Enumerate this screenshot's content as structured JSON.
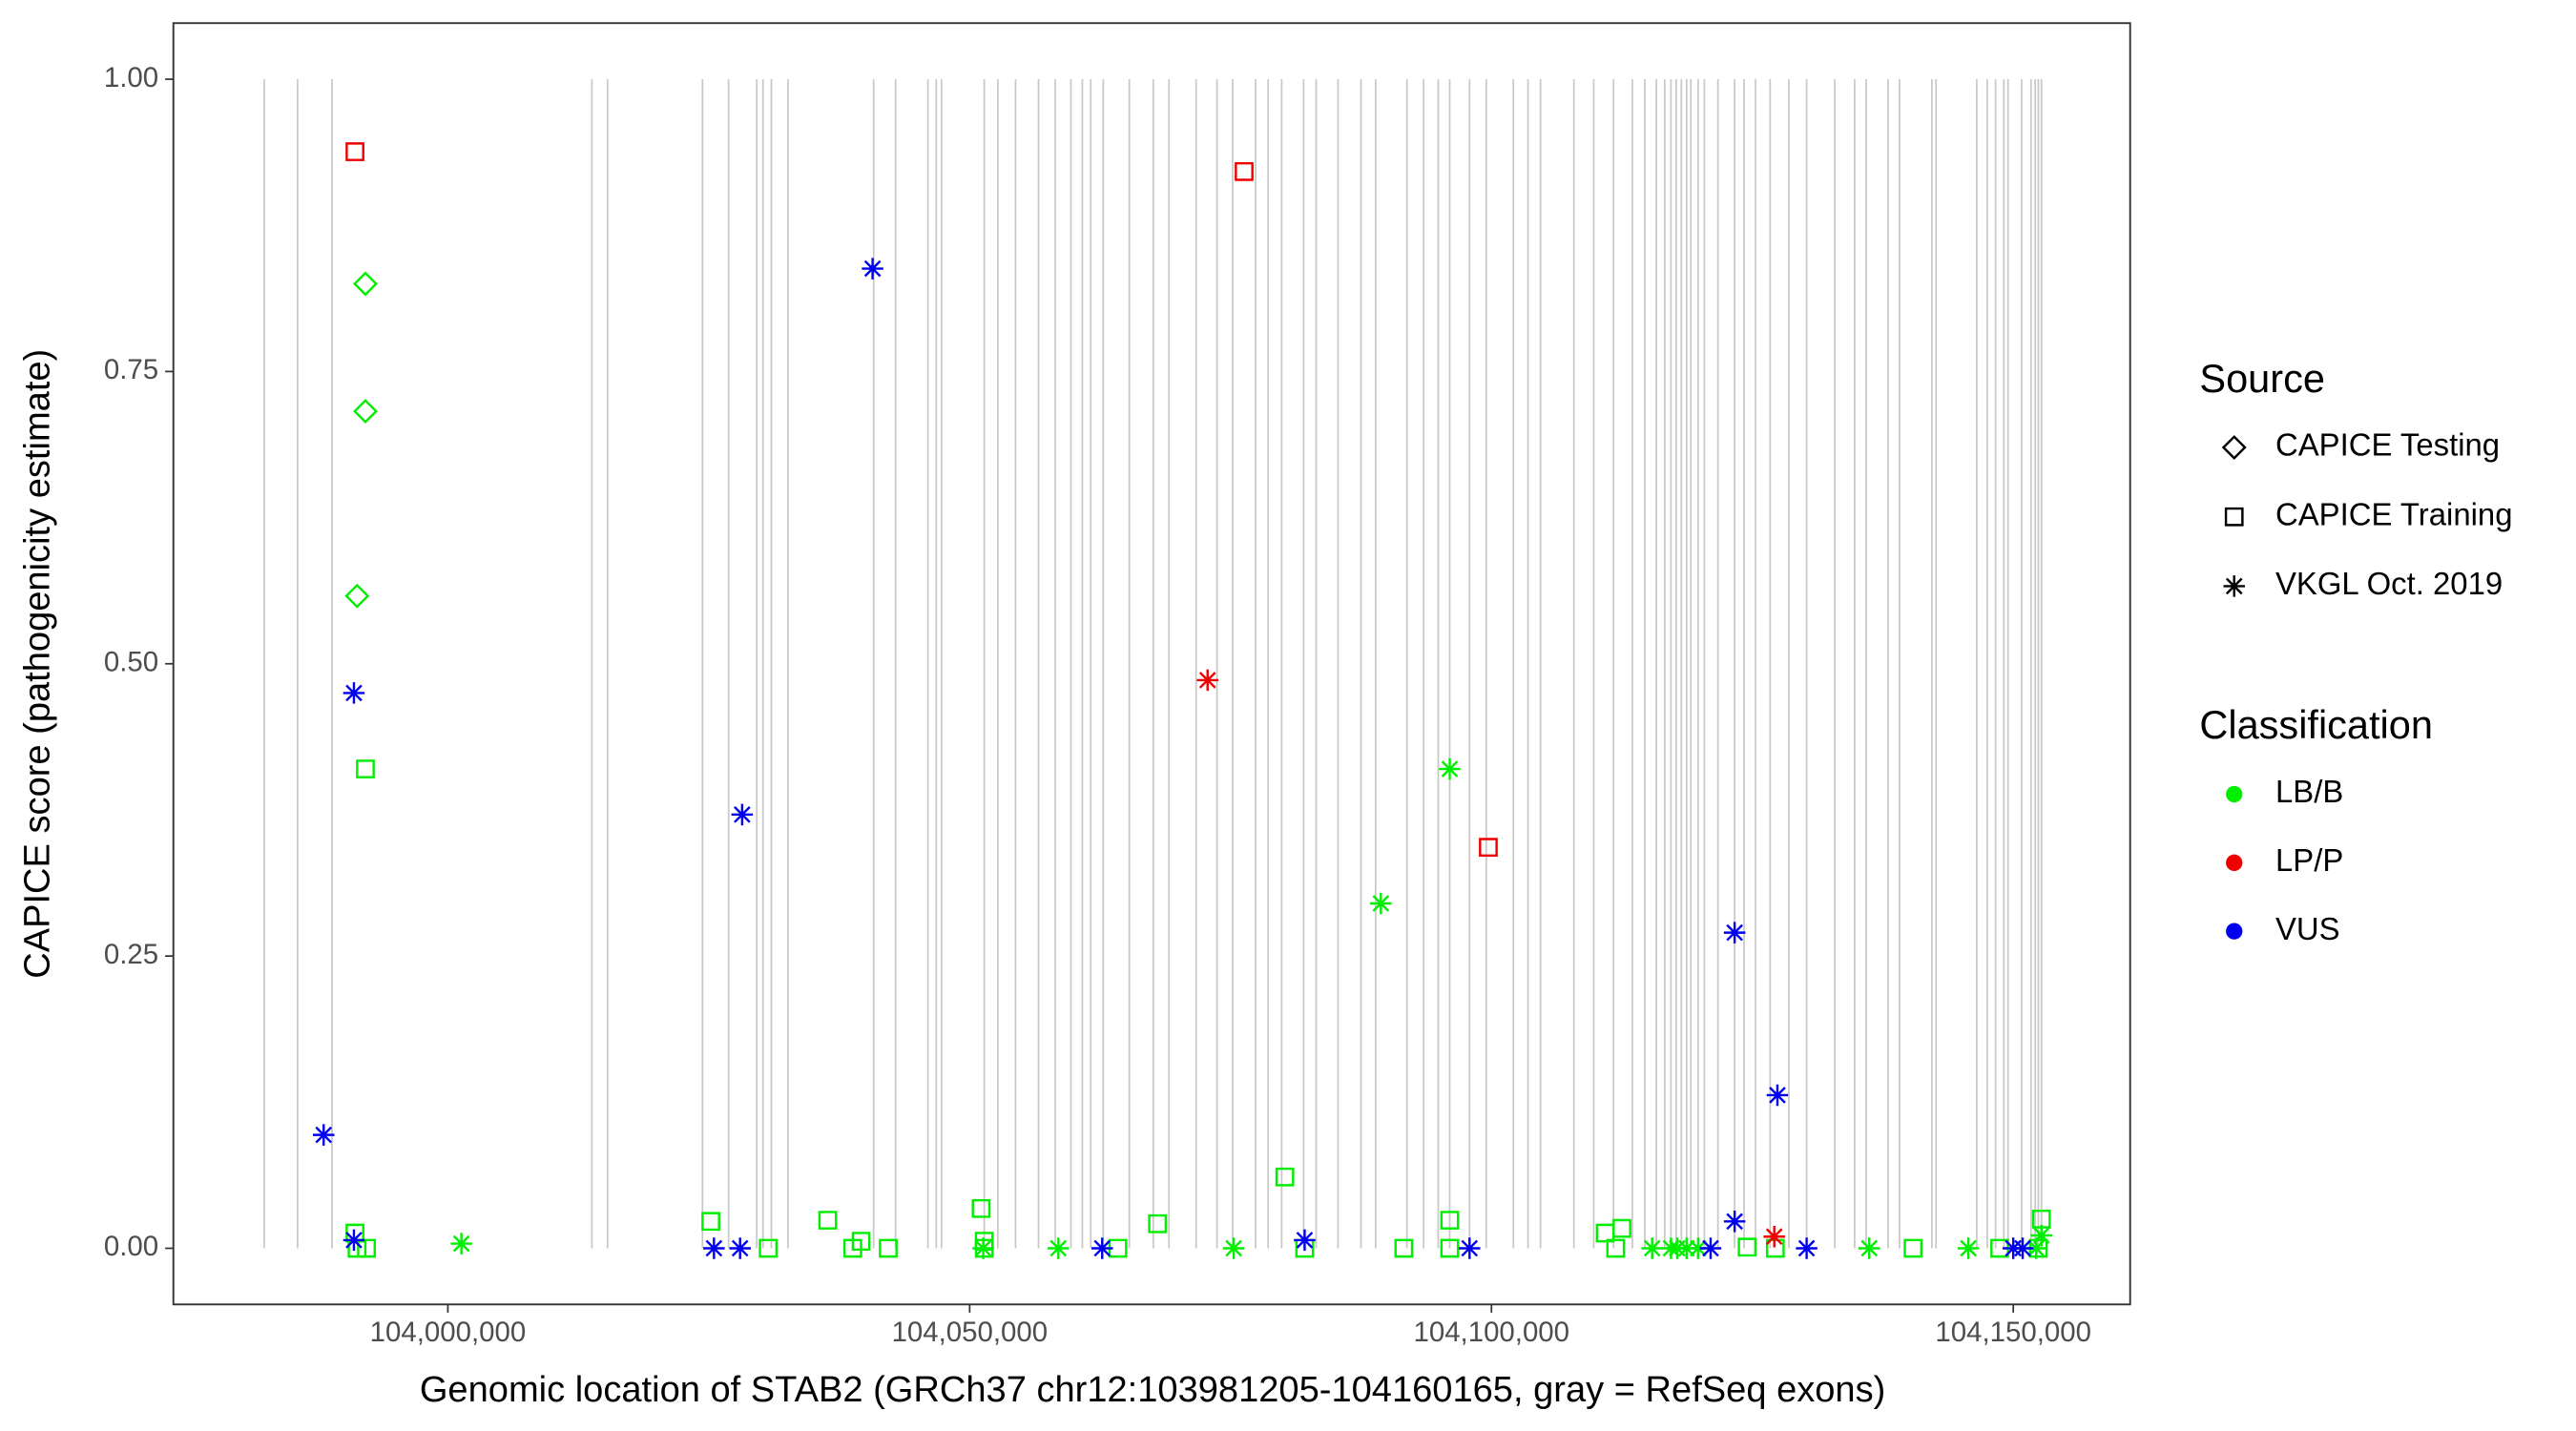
{
  "chart_data": {
    "type": "scatter",
    "x_label": "Genomic location of STAB2 (GRCh37 chr12:103981205-104160165, gray = RefSeq exons)",
    "y_label": "CAPICE score (pathogenicity estimate)",
    "xlim": [
      103973700,
      104161200
    ],
    "ylim": [
      -0.048,
      1.048
    ],
    "xticks": [
      {
        "value": 104000000,
        "label": "104,000,000"
      },
      {
        "value": 104050000,
        "label": "104,050,000"
      },
      {
        "value": 104100000,
        "label": "104,100,000"
      },
      {
        "value": 104150000,
        "label": "104,150,000"
      }
    ],
    "yticks": [
      {
        "value": 0,
        "label": "0.00"
      },
      {
        "value": 0.25,
        "label": "0.25"
      },
      {
        "value": 0.5,
        "label": "0.50"
      },
      {
        "value": 0.75,
        "label": "0.75"
      },
      {
        "value": 1,
        "label": "1.00"
      }
    ],
    "exon_color": "#c8c8c8",
    "exons": [
      103982400,
      103985600,
      103988900,
      104013800,
      104015300,
      104024400,
      104026900,
      104029600,
      104030200,
      104031000,
      104032600,
      104040800,
      104042900,
      104046000,
      104046800,
      104047300,
      104051400,
      104052700,
      104054400,
      104056600,
      104058200,
      104059700,
      104060800,
      104061600,
      104062800,
      104065300,
      104067600,
      104069100,
      104071700,
      104073700,
      104075200,
      104077400,
      104078600,
      104079900,
      104082000,
      104083200,
      104085300,
      104087500,
      104088900,
      104091900,
      104093500,
      104094900,
      104096000,
      104097900,
      104099500,
      104102100,
      104103500,
      104104700,
      104107900,
      104109800,
      104111700,
      104113500,
      104114700,
      104115800,
      104116600,
      104117200,
      104117700,
      104118200,
      104118700,
      104119100,
      104119800,
      104120400,
      104121700,
      104123300,
      104124200,
      104125300,
      104126700,
      104128500,
      104130200,
      104132900,
      104134800,
      104135900,
      104138000,
      104139100,
      104142200,
      104142600,
      104146500,
      104147500,
      104148300,
      104149100,
      104149500,
      104150800,
      104151700,
      104152100,
      104152400,
      104152700
    ],
    "source_title": "Source",
    "sources": [
      {
        "name": "CAPICE Testing",
        "shape": "diamond"
      },
      {
        "name": "CAPICE Training",
        "shape": "square"
      },
      {
        "name": "VKGL Oct. 2019",
        "shape": "asterisk"
      }
    ],
    "classification_title": "Classification",
    "classifications": [
      {
        "name": "LB/B",
        "color": "#00ee00"
      },
      {
        "name": "LP/P",
        "color": "#ee0000"
      },
      {
        "name": "VUS",
        "color": "#0000ee"
      }
    ],
    "series": [
      {
        "source": "CAPICE Testing",
        "classification": "LB/B",
        "x": [
          103992100,
          103992100,
          103991300
        ],
        "values": [
          0.825,
          0.716,
          0.558
        ]
      },
      {
        "source": "CAPICE Training",
        "classification": "LP/P",
        "x": [
          103991100,
          104076300,
          104099700
        ],
        "values": [
          0.938,
          0.921,
          0.343
        ]
      },
      {
        "source": "CAPICE Training",
        "classification": "LB/B",
        "x": [
          103992100,
          103991100,
          103991300,
          103992200,
          104025200,
          104030700,
          104036400,
          104038800,
          104039600,
          104042200,
          104051100,
          104051400,
          104051400,
          104064200,
          104068000,
          104080200,
          104082100,
          104091600,
          104096000,
          104096000,
          104110900,
          104111900,
          104112500,
          104124500,
          104127200,
          104140400,
          104148700,
          104152700,
          104152400
        ],
        "values": [
          0.41,
          0.013,
          0,
          0,
          0.023,
          0,
          0.024,
          0,
          0.006,
          0,
          0.034,
          0.006,
          0,
          0,
          0.021,
          0.061,
          0,
          0,
          0.024,
          0,
          0.013,
          0,
          0.017,
          0.001,
          0,
          0,
          0,
          0.025,
          0
        ]
      },
      {
        "source": "VKGL Oct. 2019",
        "classification": "LB/B",
        "x": [
          104001300,
          104051300,
          104058500,
          104075300,
          104089400,
          104096000,
          104115400,
          104117200,
          104117800,
          104118700,
          104119800,
          104136200,
          104145700,
          104152700,
          104152200
        ],
        "values": [
          0.004,
          0,
          0,
          0,
          0.295,
          0.41,
          0,
          0,
          0,
          0,
          0,
          0,
          0,
          0.011,
          0
        ]
      },
      {
        "source": "VKGL Oct. 2019",
        "classification": "LP/P",
        "x": [
          104072800,
          104127100
        ],
        "values": [
          0.486,
          0.01
        ]
      },
      {
        "source": "VKGL Oct. 2019",
        "classification": "VUS",
        "x": [
          103988100,
          103991000,
          103991000,
          104028200,
          104025500,
          104028000,
          104040700,
          104062700,
          104082100,
          104097900,
          104121000,
          104123300,
          104123300,
          104127400,
          104130200,
          104150000,
          104150900
        ],
        "values": [
          0.097,
          0.475,
          0.007,
          0.371,
          0,
          0,
          0.838,
          0,
          0.007,
          0,
          0,
          0.27,
          0.023,
          0.131,
          0,
          0,
          0
        ]
      }
    ]
  }
}
